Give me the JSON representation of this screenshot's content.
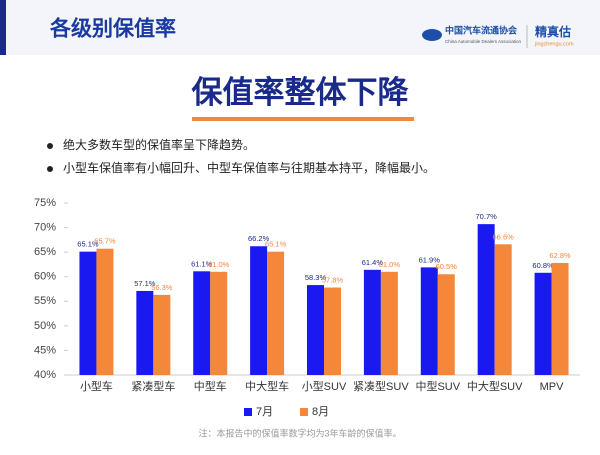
{
  "header": {
    "section": "各级别保值率",
    "org_name": "中国汽车流通协会",
    "org_name_en": "China Automobile Dealers Association",
    "brand": "精真估",
    "brand_url": "jingzhengu.com"
  },
  "headline": "保值率整体下降",
  "bullets": [
    "绝大多数车型的保值率呈下降趋势。",
    "小型车保值率有小幅回升、中型车保值率与往期基本持平，降幅最小。"
  ],
  "footnote": "注：本报告中的保值率数字均为3年车龄的保值率。",
  "chart_data": {
    "type": "bar",
    "categories": [
      "小型车",
      "紧凑型车",
      "中型车",
      "中大型车",
      "小型SUV",
      "紧凑型SUV",
      "中型SUV",
      "中大型SUV",
      "MPV"
    ],
    "series": [
      {
        "name": "7月",
        "color": "#1a1af0",
        "values": [
          65.1,
          57.1,
          61.1,
          66.2,
          58.3,
          61.4,
          61.9,
          70.7,
          60.8
        ],
        "value_labels": [
          "65.1%",
          "57.1%",
          "61.1%",
          "66.2%",
          "58.3%",
          "61.4%",
          "61.9%",
          "70.7%",
          "60.8%"
        ]
      },
      {
        "name": "8月",
        "color": "#f5873a",
        "values": [
          65.7,
          56.3,
          61.0,
          65.1,
          57.8,
          61.0,
          60.5,
          66.6,
          62.8
        ],
        "value_labels": [
          "65.7%",
          "56.3%",
          "61.0%",
          "65.1%",
          "57.8%",
          "61.0%",
          "60.5%",
          "66.6%",
          "62.8%"
        ]
      }
    ],
    "ylim": [
      40,
      75
    ],
    "yticks": [
      {
        "value": 40,
        "label": "40%"
      },
      {
        "value": 45,
        "label": "45%"
      },
      {
        "value": 50,
        "label": "50%"
      },
      {
        "value": 55,
        "label": "55%"
      },
      {
        "value": 60,
        "label": "60%"
      },
      {
        "value": 65,
        "label": "65%"
      },
      {
        "value": 70,
        "label": "70%"
      },
      {
        "value": 75,
        "label": "75%"
      }
    ],
    "legend": "bottom"
  }
}
